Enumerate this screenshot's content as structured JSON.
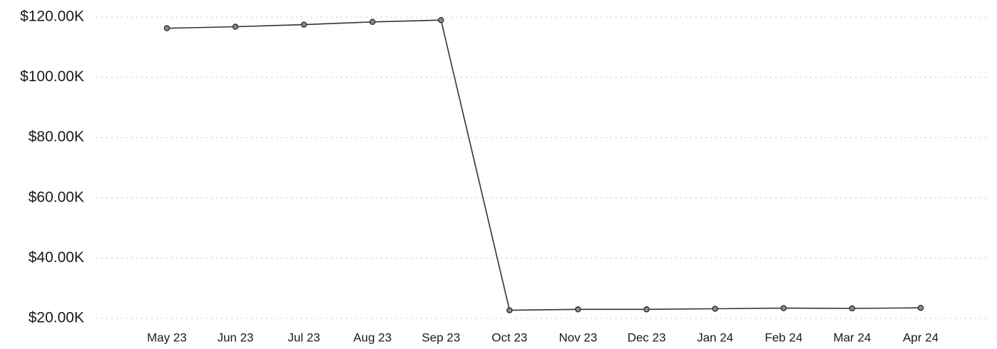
{
  "chart_data": {
    "type": "line",
    "title": "",
    "xlabel": "",
    "ylabel": "",
    "categories": [
      "May 23",
      "Jun 23",
      "Jul 23",
      "Aug 23",
      "Sep 23",
      "Oct 23",
      "Nov 23",
      "Dec 23",
      "Jan 24",
      "Feb 24",
      "Mar 24",
      "Apr 24"
    ],
    "series": [
      {
        "values": [
          116.3,
          116.8,
          117.5,
          118.4,
          119.0,
          22.7,
          23.0,
          23.0,
          23.2,
          23.4,
          23.3,
          23.5
        ],
        "color": "#333333"
      }
    ],
    "ylim": [
      20,
      120
    ],
    "yticks": [
      20,
      40,
      60,
      80,
      100,
      120
    ],
    "ytick_labels": [
      "$20.00K",
      "$40.00K",
      "$60.00K",
      "$80.00K",
      "$100.00K",
      "$120.00K"
    ],
    "grid": true,
    "legend": "none"
  }
}
